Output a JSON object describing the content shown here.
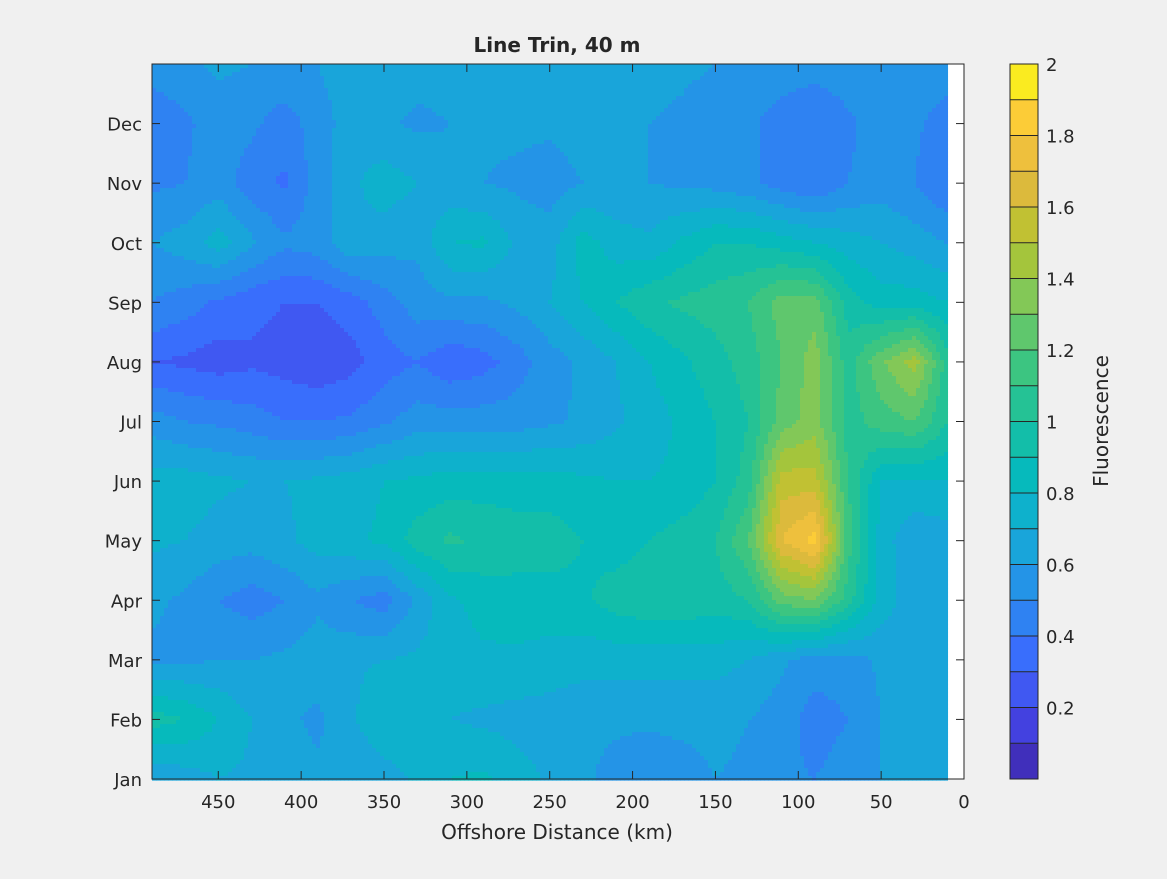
{
  "chart_data": {
    "type": "heatmap",
    "title": "Line Trin, 40 m",
    "xlabel": "Offshore Distance (km)",
    "ylabel": "",
    "xlim": [
      490,
      0
    ],
    "x_reversed": true,
    "x_ticks": [
      450,
      400,
      350,
      300,
      250,
      200,
      150,
      100,
      50,
      0
    ],
    "y_ticks": [
      "Jan",
      "Feb",
      "Mar",
      "Apr",
      "May",
      "Jun",
      "Jul",
      "Aug",
      "Sep",
      "Oct",
      "Nov",
      "Dec"
    ],
    "colorbar": {
      "label": "Fluorescence",
      "range": [
        0,
        2
      ],
      "levels": 20,
      "ticks": [
        0.2,
        0.4,
        0.6,
        0.8,
        1,
        1.2,
        1.4,
        1.6,
        1.8,
        2
      ],
      "colormap": [
        "#3e26a8",
        "#4444e6",
        "#3b6bfe",
        "#2a8ced",
        "#17a8d8",
        "#04b9bf",
        "#1ac0a0",
        "#40c67d",
        "#7ec85c",
        "#b4c42e",
        "#e0b93e",
        "#fcc73b",
        "#f9fb15"
      ]
    },
    "x": [
      490,
      470,
      450,
      430,
      410,
      390,
      370,
      350,
      330,
      310,
      290,
      270,
      250,
      230,
      210,
      190,
      170,
      150,
      130,
      110,
      90,
      70,
      50,
      30,
      10
    ],
    "y": [
      "Jan",
      "Feb",
      "Mar",
      "Apr",
      "May",
      "Jun",
      "Jul",
      "Aug",
      "Sep",
      "Oct",
      "Nov",
      "Dec",
      "Jan"
    ],
    "z": [
      [
        0.6,
        0.65,
        0.7,
        0.68,
        0.65,
        0.62,
        0.6,
        0.65,
        0.72,
        0.8,
        0.82,
        0.75,
        0.68,
        0.62,
        0.56,
        0.52,
        0.55,
        0.6,
        0.58,
        0.52,
        0.5,
        0.55,
        0.6,
        0.62,
        0.6
      ],
      [
        0.95,
        0.9,
        0.8,
        0.7,
        0.62,
        0.58,
        0.68,
        0.8,
        0.75,
        0.7,
        0.68,
        0.66,
        0.65,
        0.63,
        0.62,
        0.62,
        0.63,
        0.63,
        0.6,
        0.55,
        0.45,
        0.5,
        0.6,
        0.62,
        0.6
      ],
      [
        0.58,
        0.58,
        0.6,
        0.6,
        0.62,
        0.65,
        0.68,
        0.7,
        0.72,
        0.75,
        0.78,
        0.78,
        0.76,
        0.74,
        0.74,
        0.74,
        0.74,
        0.74,
        0.7,
        0.62,
        0.55,
        0.55,
        0.62,
        0.65,
        0.65
      ],
      [
        0.62,
        0.58,
        0.5,
        0.45,
        0.5,
        0.58,
        0.5,
        0.45,
        0.62,
        0.78,
        0.84,
        0.86,
        0.86,
        0.88,
        0.95,
        0.98,
        0.98,
        0.95,
        1.0,
        1.25,
        1.3,
        1.05,
        0.75,
        0.65,
        0.65
      ],
      [
        0.72,
        0.7,
        0.66,
        0.64,
        0.68,
        0.74,
        0.78,
        0.82,
        0.95,
        1.02,
        0.98,
        0.95,
        0.95,
        0.9,
        0.85,
        0.9,
        0.95,
        1.0,
        1.2,
        1.7,
        1.85,
        1.15,
        0.75,
        0.62,
        0.65
      ],
      [
        0.75,
        0.75,
        0.72,
        0.7,
        0.7,
        0.72,
        0.75,
        0.8,
        0.82,
        0.85,
        0.85,
        0.85,
        0.85,
        0.82,
        0.8,
        0.8,
        0.82,
        0.9,
        1.05,
        1.55,
        1.55,
        1.1,
        0.8,
        0.78,
        0.8
      ],
      [
        0.55,
        0.5,
        0.48,
        0.45,
        0.4,
        0.4,
        0.42,
        0.48,
        0.55,
        0.55,
        0.55,
        0.55,
        0.58,
        0.62,
        0.68,
        0.75,
        0.82,
        0.9,
        1.0,
        1.25,
        1.35,
        1.05,
        1.15,
        1.2,
        1.0
      ],
      [
        0.3,
        0.28,
        0.25,
        0.28,
        0.26,
        0.22,
        0.26,
        0.35,
        0.4,
        0.32,
        0.36,
        0.45,
        0.55,
        0.62,
        0.7,
        0.8,
        0.88,
        0.96,
        1.05,
        1.2,
        1.35,
        1.05,
        1.28,
        1.45,
        1.05
      ],
      [
        0.5,
        0.45,
        0.38,
        0.33,
        0.3,
        0.3,
        0.35,
        0.45,
        0.55,
        0.58,
        0.58,
        0.62,
        0.7,
        0.8,
        0.9,
        0.98,
        1.02,
        1.05,
        1.1,
        1.25,
        1.25,
        0.95,
        0.85,
        0.85,
        0.8
      ],
      [
        0.6,
        0.65,
        0.75,
        0.62,
        0.52,
        0.55,
        0.68,
        0.65,
        0.62,
        0.8,
        0.82,
        0.68,
        0.65,
        0.85,
        0.75,
        0.72,
        0.82,
        0.9,
        0.9,
        0.85,
        0.8,
        0.75,
        0.7,
        0.65,
        0.6
      ],
      [
        0.48,
        0.5,
        0.55,
        0.45,
        0.38,
        0.55,
        0.68,
        0.75,
        0.7,
        0.62,
        0.6,
        0.58,
        0.55,
        0.6,
        0.62,
        0.6,
        0.58,
        0.56,
        0.52,
        0.45,
        0.4,
        0.5,
        0.55,
        0.5,
        0.4
      ],
      [
        0.42,
        0.48,
        0.55,
        0.52,
        0.45,
        0.55,
        0.65,
        0.62,
        0.58,
        0.6,
        0.62,
        0.62,
        0.62,
        0.65,
        0.62,
        0.6,
        0.58,
        0.55,
        0.52,
        0.45,
        0.4,
        0.48,
        0.55,
        0.52,
        0.45
      ],
      [
        0.55,
        0.58,
        0.62,
        0.6,
        0.58,
        0.6,
        0.66,
        0.66,
        0.64,
        0.64,
        0.66,
        0.68,
        0.68,
        0.68,
        0.66,
        0.64,
        0.62,
        0.6,
        0.58,
        0.56,
        0.55,
        0.56,
        0.58,
        0.58,
        0.55
      ]
    ]
  }
}
